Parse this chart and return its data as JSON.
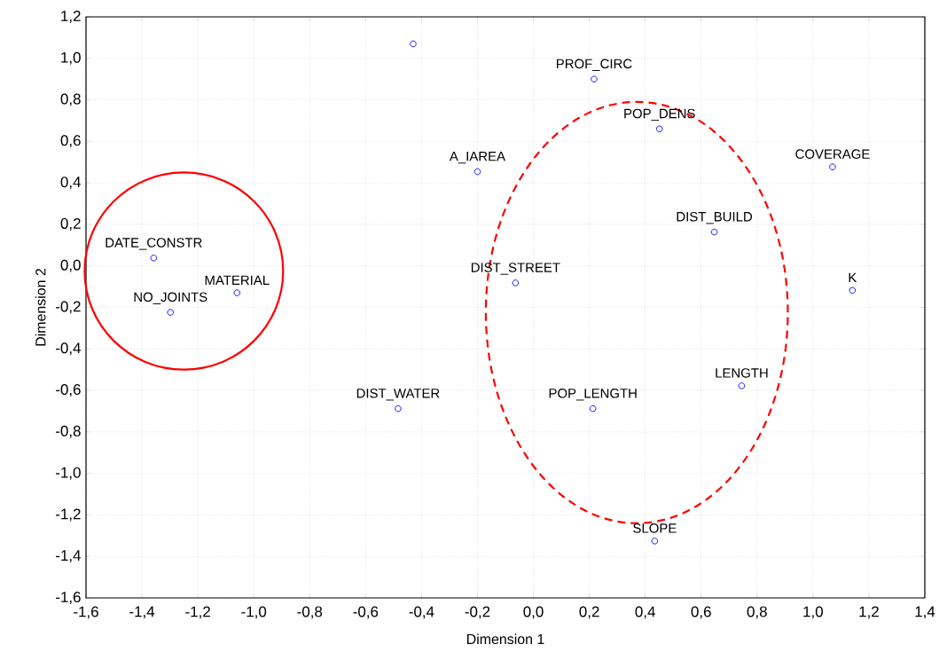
{
  "chart_data": {
    "type": "scatter",
    "xlabel": "Dimension 1",
    "ylabel": "Dimension 2",
    "x": [
      -0.43,
      0.217,
      0.451,
      -0.2,
      1.07,
      0.647,
      -0.064,
      1.141,
      -1.358,
      -1.06,
      -1.298,
      -0.484,
      0.213,
      0.745,
      0.434
    ],
    "series": [
      {
        "color": "#0000ff",
        "values": [
          1.07,
          0.9,
          0.66,
          0.454,
          0.477,
          0.163,
          -0.082,
          -0.118,
          0.038,
          -0.13,
          -0.224,
          -0.688,
          -0.688,
          -0.578,
          -1.326
        ]
      }
    ],
    "marker": "circle",
    "grid": true,
    "xlim": [
      -1.6,
      1.4
    ],
    "ylim": [
      -1.6,
      1.2
    ],
    "xticks": [
      {
        "value": -1.6,
        "label": "-1,6"
      },
      {
        "value": -1.4,
        "label": "-1,4"
      },
      {
        "value": -1.2,
        "label": "-1,2"
      },
      {
        "value": -1.0,
        "label": "-1,0"
      },
      {
        "value": -0.8,
        "label": "-0,8"
      },
      {
        "value": -0.6,
        "label": "-0,6"
      },
      {
        "value": -0.4,
        "label": "-0,4"
      },
      {
        "value": -0.2,
        "label": "-0,2"
      },
      {
        "value": 0,
        "label": "0,0"
      },
      {
        "value": 0.2,
        "label": "0,2"
      },
      {
        "value": 0.4,
        "label": "0,4"
      },
      {
        "value": 0.6,
        "label": "0,6"
      },
      {
        "value": 0.8,
        "label": "0,8"
      },
      {
        "value": 1.0,
        "label": "1,0"
      },
      {
        "value": 1.2,
        "label": "1,2"
      },
      {
        "value": 1.4,
        "label": "1,4"
      }
    ],
    "yticks": [
      {
        "value": -1.6,
        "label": "-1,6"
      },
      {
        "value": -1.4,
        "label": "-1,4"
      },
      {
        "value": -1.2,
        "label": "-1,2"
      },
      {
        "value": -1.0,
        "label": "-1,0"
      },
      {
        "value": -0.8,
        "label": "-0,8"
      },
      {
        "value": -0.6,
        "label": "-0,6"
      },
      {
        "value": -0.4,
        "label": "-0,4"
      },
      {
        "value": -0.2,
        "label": "-0,2"
      },
      {
        "value": 0,
        "label": "0,0"
      },
      {
        "value": 0.2,
        "label": "0,2"
      },
      {
        "value": 0.4,
        "label": "0,4"
      },
      {
        "value": 0.6,
        "label": "0,6"
      },
      {
        "value": 0.8,
        "label": "0,8"
      },
      {
        "value": 1.0,
        "label": "1,0"
      },
      {
        "value": 1.2,
        "label": "1,2"
      }
    ],
    "annotations": [
      {
        "text": "PROF_CIRC",
        "x": 0.217,
        "y": 0.9
      },
      {
        "text": "POP_DENS",
        "x": 0.451,
        "y": 0.66
      },
      {
        "text": "A_IAREA",
        "x": -0.2,
        "y": 0.454
      },
      {
        "text": "COVERAGE",
        "x": 1.07,
        "y": 0.477
      },
      {
        "text": "DIST_BUILD",
        "x": 0.647,
        "y": 0.163
      },
      {
        "text": "DIST_STREET",
        "x": -0.064,
        "y": -0.082
      },
      {
        "text": "K",
        "x": 1.141,
        "y": -0.118
      },
      {
        "text": "DATE_CONSTR",
        "x": -1.358,
        "y": 0.038
      },
      {
        "text": "MATERIAL",
        "x": -1.06,
        "y": -0.13
      },
      {
        "text": "NO_JOINTS",
        "x": -1.298,
        "y": -0.224
      },
      {
        "text": "DIST_WATER",
        "x": -0.484,
        "y": -0.688
      },
      {
        "text": "POP_LENGTH",
        "x": 0.213,
        "y": -0.688
      },
      {
        "text": "LENGTH",
        "x": 0.745,
        "y": -0.578
      },
      {
        "text": "SLOPE",
        "x": 0.434,
        "y": -1.326
      }
    ]
  }
}
